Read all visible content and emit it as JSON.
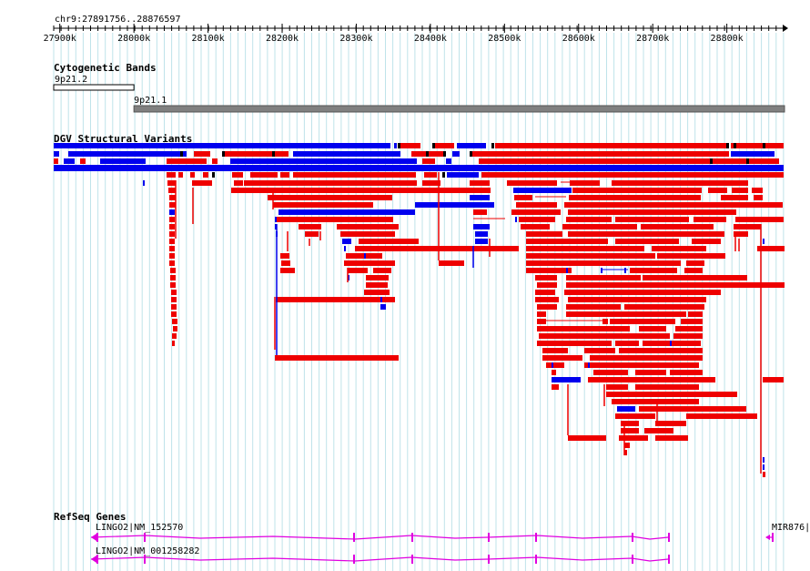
{
  "region": "chr9:27891756..28876597",
  "axis": {
    "min": 27891756,
    "max": 28876597,
    "ticks": [
      "27900k",
      "28000k",
      "28100k",
      "28200k",
      "28300k",
      "28400k",
      "28500k",
      "28600k",
      "28700k",
      "28800k"
    ]
  },
  "tracks": {
    "cytoband": {
      "title": "Cytogenetic Bands",
      "bands": [
        {
          "name": "9p21.2",
          "start": 27891756,
          "end": 28000000,
          "stain": "white"
        },
        {
          "name": "9p21.1",
          "start": 28000000,
          "end": 28876597,
          "stain": "gray"
        }
      ]
    },
    "dgv": {
      "title": "DGV Structural Variants",
      "colors": {
        "gain": "#0000ee",
        "loss": "#ee0000",
        "complex": "#000000"
      }
    },
    "refseq": {
      "title": "RefSeq Genes",
      "transcripts": [
        {
          "label": "LINGO2|NM_152570"
        },
        {
          "label": "LINGO2|NM_001258282"
        }
      ],
      "mir_label": "MIR876|",
      "color": "#e000e0"
    }
  }
}
